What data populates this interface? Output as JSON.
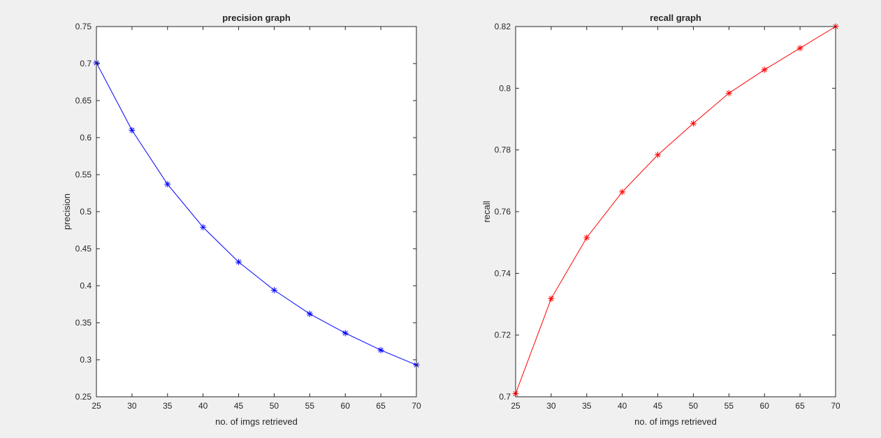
{
  "chart_data": [
    {
      "type": "line",
      "title": "precision graph",
      "xlabel": "no. of imgs retrieved",
      "ylabel": "precision",
      "xlim": [
        25,
        70
      ],
      "ylim": [
        0.25,
        0.75
      ],
      "xticks": [
        25,
        30,
        35,
        40,
        45,
        50,
        55,
        60,
        65,
        70
      ],
      "yticks": [
        0.25,
        0.3,
        0.35,
        0.4,
        0.45,
        0.5,
        0.55,
        0.6,
        0.65,
        0.7,
        0.75
      ],
      "ytick_labels": [
        "0.25",
        "0.3",
        "0.35",
        "0.4",
        "0.45",
        "0.5",
        "0.55",
        "0.6",
        "0.65",
        "0.7",
        "0.75"
      ],
      "grid": false,
      "series": [
        {
          "color": "#0000ff",
          "marker": "asterisk",
          "x": [
            25,
            30,
            35,
            40,
            45,
            50,
            55,
            60,
            65,
            70
          ],
          "y": [
            0.701,
            0.61,
            0.537,
            0.479,
            0.432,
            0.394,
            0.362,
            0.336,
            0.313,
            0.293
          ]
        }
      ]
    },
    {
      "type": "line",
      "title": "recall graph",
      "xlabel": "no. of imgs retrieved",
      "ylabel": "recall",
      "xlim": [
        25,
        70
      ],
      "ylim": [
        0.7,
        0.82
      ],
      "xticks": [
        25,
        30,
        35,
        40,
        45,
        50,
        55,
        60,
        65,
        70
      ],
      "yticks": [
        0.7,
        0.72,
        0.74,
        0.76,
        0.78,
        0.8,
        0.82
      ],
      "ytick_labels": [
        "0.7",
        "0.72",
        "0.74",
        "0.76",
        "0.78",
        "0.8",
        "0.82"
      ],
      "grid": false,
      "series": [
        {
          "color": "#ff0000",
          "marker": "asterisk",
          "x": [
            25,
            30,
            35,
            40,
            45,
            50,
            55,
            60,
            65,
            70
          ],
          "y": [
            0.701,
            0.7318,
            0.7516,
            0.7664,
            0.7784,
            0.7886,
            0.7984,
            0.806,
            0.813,
            0.82
          ]
        }
      ]
    }
  ]
}
